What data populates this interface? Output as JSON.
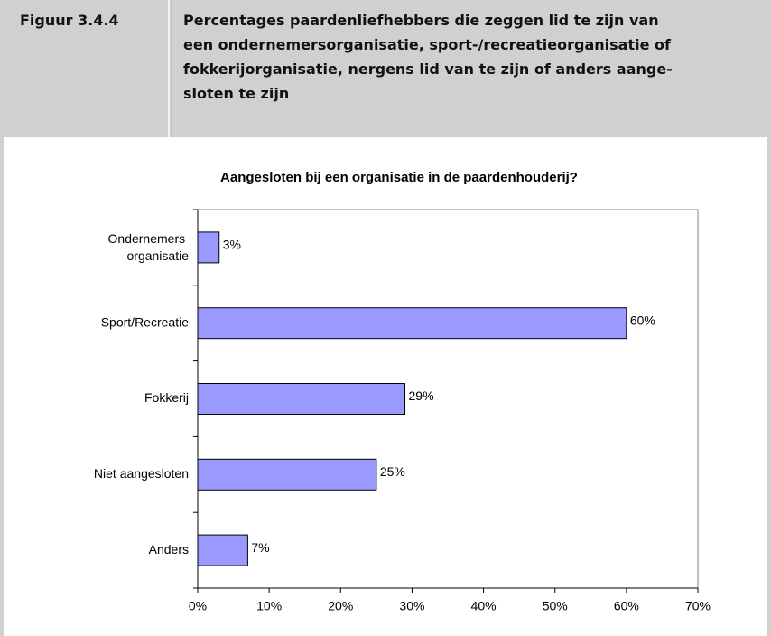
{
  "figure": {
    "label": "Figuur 3.4.4",
    "caption_lines": [
      "Percentages paardenliefhebbers die zeggen lid te zijn van",
      "een ondernemersorganisatie, sport-/recreatieorganisatie of",
      "fokkerijorganisatie, nergens lid van te zijn of anders aange-",
      "sloten te zijn"
    ]
  },
  "chart_data": {
    "type": "hbar",
    "title": "Aangesloten bij een organisatie in de paardenhouderij?",
    "categories": [
      "Ondernemers organisatie",
      "Sport/Recreatie",
      "Fokkerij",
      "Niet aangesloten",
      "Anders"
    ],
    "values": [
      3,
      60,
      29,
      25,
      7
    ],
    "value_labels": [
      "3%",
      "60%",
      "29%",
      "25%",
      "7%"
    ],
    "color": "#9999ff",
    "xlim": [
      0,
      70
    ],
    "xticks": [
      {
        "value": 0,
        "label": "0%"
      },
      {
        "value": 10,
        "label": "10%"
      },
      {
        "value": 20,
        "label": "20%"
      },
      {
        "value": 30,
        "label": "30%"
      },
      {
        "value": 40,
        "label": "40%"
      },
      {
        "value": 50,
        "label": "50%"
      },
      {
        "value": 60,
        "label": "60%"
      },
      {
        "value": 70,
        "label": "70%"
      }
    ],
    "grid": false
  }
}
